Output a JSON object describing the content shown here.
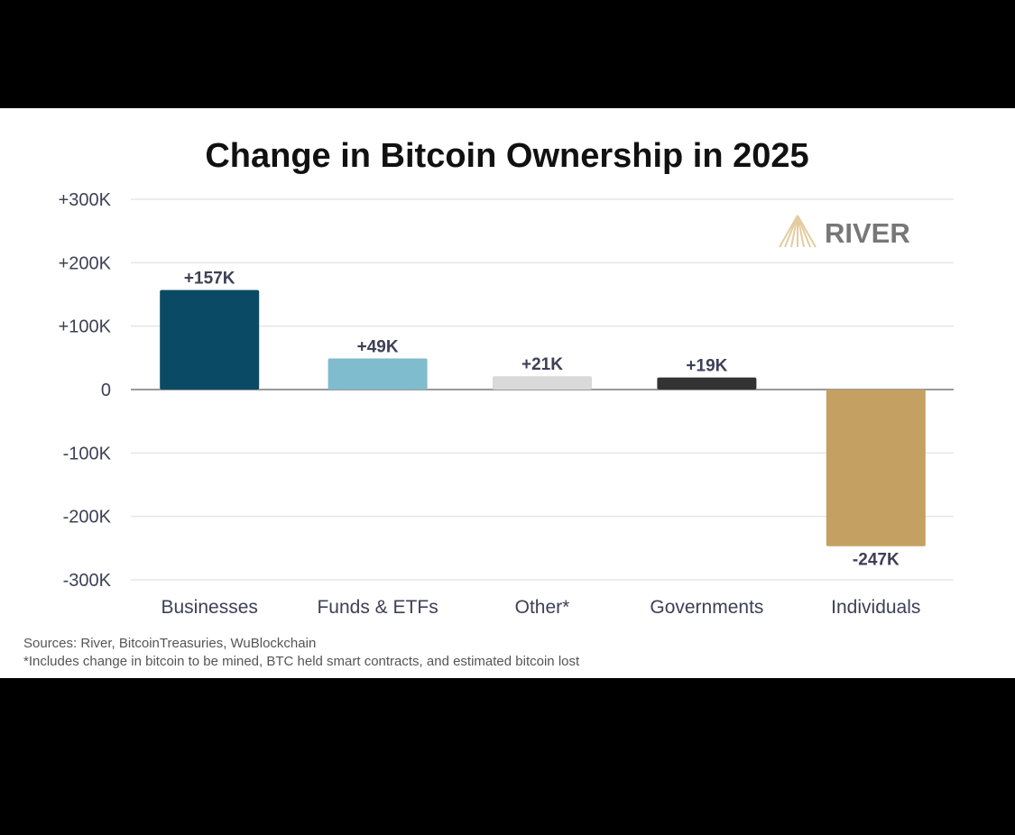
{
  "chart_data": {
    "type": "bar",
    "title": "Change in Bitcoin Ownership in 2025",
    "xlabel": "",
    "ylabel": "",
    "categories": [
      "Businesses",
      "Funds & ETFs",
      "Other*",
      "Governments",
      "Individuals"
    ],
    "values": [
      157,
      49,
      21,
      19,
      -247
    ],
    "value_unit": "thousand BTC",
    "data_labels": [
      "+157K",
      "+49K",
      "+21K",
      "+19K",
      "-247K"
    ],
    "colors": [
      "#0b4a64",
      "#7fbccd",
      "#d9d9d9",
      "#333333",
      "#c4a062"
    ],
    "ylim": [
      -300,
      300
    ],
    "yticks": [
      300,
      200,
      100,
      0,
      -100,
      -200,
      -300
    ],
    "ytick_labels": [
      "+300K",
      "+200K",
      "+100K",
      "0",
      "-100K",
      "-200K",
      "-300K"
    ],
    "grid": true,
    "legend": "none"
  },
  "logo": {
    "text": "RIVER",
    "color": "#c4a062"
  },
  "footer": {
    "sources": "Sources: River, BitcoinTreasuries, WuBlockchain",
    "footnote": "*Includes change in bitcoin to be mined, BTC held smart contracts, and estimated bitcoin lost"
  }
}
